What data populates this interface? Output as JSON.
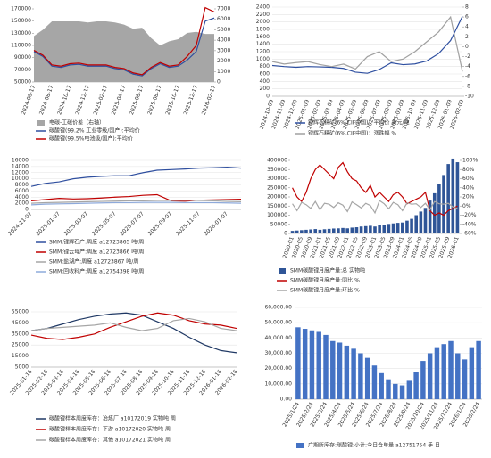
{
  "chart_data": [
    {
      "type": "line",
      "categories": [
        "2024-06-17",
        null,
        "2024-08-17",
        null,
        "2024-10-17",
        null,
        "2024-12-17",
        null,
        "2025-02-17",
        null,
        "2025-04-17",
        null,
        "2025-06-17",
        null,
        "2025-08-17",
        null,
        "2025-10-17",
        null,
        "2025-12-17",
        null,
        "2026-02-17"
      ],
      "series": [
        {
          "name": "电碳-工碳价差（右轴）",
          "type": "area",
          "axis": "y2",
          "color": "#a6a6a6",
          "values": [
            4400,
            5000,
            5800,
            5800,
            5800,
            5800,
            5700,
            5800,
            5800,
            5700,
            5500,
            5100,
            5200,
            4200,
            3500,
            3900,
            4100,
            4700,
            4800,
            4600,
            4600
          ]
        },
        {
          "name": "碳酸锂(99.2% 工业零级/国产):平均价",
          "type": "line",
          "color": "#2f4f9f",
          "values": [
            100000,
            92000,
            76000,
            74000,
            78000,
            79000,
            76000,
            76000,
            76000,
            72000,
            70000,
            63000,
            60000,
            72000,
            80000,
            74000,
            76000,
            86000,
            100000,
            150000,
            155000
          ]
        },
        {
          "name": "碳酸锂(99.5%电池级/国产):平均价",
          "type": "line",
          "color": "#c00000",
          "values": [
            102000,
            94000,
            78000,
            76000,
            80000,
            81000,
            78000,
            78000,
            78000,
            74000,
            72000,
            65000,
            62000,
            74000,
            82000,
            76000,
            78000,
            92000,
            110000,
            172000,
            165000
          ]
        }
      ],
      "ylim": [
        50000,
        170000
      ],
      "yticks": [
        50000,
        70000,
        90000,
        110000,
        130000,
        150000,
        170000
      ],
      "y2lim": [
        0,
        7000
      ],
      "y2ticks": [
        0,
        1000,
        2000,
        3000,
        4000,
        5000,
        6000,
        7000
      ],
      "grid": false
    },
    {
      "type": "line",
      "categories": [
        "2024-10-09",
        "2024-11-09",
        "2024-12-09",
        "2025-01-09",
        "2025-02-09",
        "2025-03-09",
        "2025-04-09",
        "2025-05-09",
        "2025-06-09",
        "2025-07-09",
        "2025-08-09",
        "2025-09-09",
        "2025-10-09",
        "2025-11-09",
        "2025-12-09",
        "2026-01-09",
        "2026-02-09"
      ],
      "series": [
        {
          "name": "锂辉石精矿(6%,CIF中国)：平均价 美元/吨",
          "type": "line",
          "color": "#2e4fa0",
          "values": [
            830,
            800,
            780,
            800,
            790,
            780,
            750,
            650,
            620,
            720,
            900,
            850,
            870,
            950,
            1150,
            1500,
            2150
          ]
        },
        {
          "name": "锂辉石精矿(6%,CIF中国)：涨跌幅 %",
          "type": "line",
          "axis": "y2",
          "color": "#a0a0a0",
          "values": [
            -3,
            -3.5,
            -3.2,
            -3,
            -3.6,
            -4,
            -3.5,
            -4.5,
            -2,
            -1,
            -3,
            -2.5,
            -1,
            1,
            3,
            6,
            -5
          ]
        }
      ],
      "ylim": [
        0,
        2400
      ],
      "yticks": [
        0,
        200,
        400,
        600,
        800,
        1000,
        1200,
        1400,
        1600,
        1800,
        2000,
        2200,
        2400
      ],
      "y2lim": [
        -10,
        8
      ],
      "y2ticks": [
        -10,
        -8,
        -6,
        -4,
        -2,
        0,
        2,
        4,
        6,
        8
      ],
      "grid": true
    },
    {
      "type": "line",
      "categories": [
        "2024-11-07",
        null,
        "2025-01-07",
        null,
        "2025-03-07",
        null,
        "2025-05-07",
        null,
        "2025-07-07",
        null,
        "2025-09-07",
        null,
        "2025-11-07",
        null,
        "2026-01-07",
        null
      ],
      "series": [
        {
          "name": "SMM:锂辉石产:周度 a12723865 吨/周",
          "type": "line",
          "color": "#2f4f9f",
          "values": [
            7500,
            8500,
            9000,
            10000,
            10500,
            10800,
            11000,
            11000,
            12000,
            12800,
            13000,
            13200,
            13500,
            13600,
            13800,
            13500
          ]
        },
        {
          "name": "SMM:锂云母产:周度 a12723866 吨/周",
          "type": "line",
          "color": "#c00000",
          "values": [
            2800,
            3200,
            3600,
            3400,
            3500,
            3700,
            4000,
            4200,
            4600,
            4800,
            2800,
            2700,
            3000,
            3100,
            3200,
            3300
          ]
        },
        {
          "name": "SMM:盐湖产:周度 a12723867 吨/周",
          "type": "line",
          "color": "#a6a6a6",
          "values": [
            2000,
            2200,
            2300,
            2400,
            2500,
            2600,
            2700,
            2800,
            2800,
            2900,
            2900,
            3000,
            2900,
            2800,
            2600,
            2500
          ]
        },
        {
          "name": "SMM:回收料产:周度 a12754398 吨/周",
          "type": "line",
          "color": "#8eaadb",
          "values": [
            1500,
            1700,
            1800,
            1900,
            2000,
            2100,
            2200,
            2200,
            2300,
            2300,
            2300,
            2200,
            2200,
            2200,
            2100,
            2000
          ]
        }
      ],
      "ylim": [
        0,
        16000
      ],
      "yticks": [
        0,
        2000,
        4000,
        6000,
        8000,
        10000,
        12000,
        14000,
        16000
      ],
      "grid": true
    },
    {
      "type": "bar",
      "categories": [
        "2020-01",
        null,
        "2020-05",
        null,
        "2020-09",
        null,
        "2021-01",
        null,
        "2021-05",
        null,
        "2021-09",
        null,
        "2022-01",
        null,
        "2022-05",
        null,
        "2022-09",
        null,
        "2023-01",
        null,
        "2023-05",
        null,
        "2023-09",
        null,
        "2024-01",
        null,
        "2024-05",
        null,
        "2024-09",
        null,
        "2025-01",
        null,
        "2025-05",
        null,
        "2025-09",
        null,
        "2026-01"
      ],
      "series": [
        {
          "name": "SMM碳酸锂月度产量:总 实物吨",
          "type": "bar",
          "color": "#2f5597",
          "values": [
            14000,
            16000,
            18000,
            20000,
            22000,
            24000,
            20000,
            23000,
            25000,
            27000,
            28000,
            30000,
            28000,
            32000,
            34000,
            38000,
            40000,
            42000,
            38000,
            45000,
            48000,
            52000,
            55000,
            58000,
            60000,
            70000,
            80000,
            100000,
            120000,
            140000,
            180000,
            220000,
            270000,
            320000,
            380000,
            410000,
            390000
          ]
        },
        {
          "name": "SMM碳酸锂月度产量:同比 %",
          "type": "line",
          "axis": "y2",
          "color": "#c00000",
          "values": [
            40,
            20,
            10,
            30,
            60,
            80,
            90,
            80,
            70,
            60,
            85,
            95,
            75,
            60,
            55,
            40,
            30,
            45,
            20,
            30,
            20,
            10,
            25,
            30,
            20,
            5,
            10,
            15,
            20,
            30,
            -10,
            -20,
            -15,
            -20,
            -10,
            -5,
            0
          ]
        },
        {
          "name": "SMM碳酸锂月度产量:环比 %",
          "type": "line",
          "axis": "y2",
          "color": "#a6a6a6",
          "values": [
            5,
            -10,
            8,
            3,
            -5,
            10,
            -8,
            6,
            4,
            -3,
            7,
            2,
            -12,
            9,
            3,
            -4,
            6,
            1,
            -15,
            12,
            5,
            -6,
            8,
            3,
            -10,
            7,
            4,
            5,
            -3,
            6,
            -8,
            10,
            5,
            4,
            6,
            -2,
            -5
          ]
        }
      ],
      "ylim": [
        0,
        400000
      ],
      "yticks": [
        0,
        50000,
        100000,
        150000,
        200000,
        250000,
        300000,
        350000,
        400000
      ],
      "y2lim": [
        -60,
        100
      ],
      "y2ticks": [
        {
          "value": -60,
          "label": "-60%"
        },
        {
          "value": -40,
          "label": "-40%"
        },
        {
          "value": -20,
          "label": "-20%"
        },
        {
          "value": 0,
          "label": "0%"
        },
        {
          "value": 20,
          "label": "20%"
        },
        {
          "value": 40,
          "label": "40%"
        },
        {
          "value": 60,
          "label": "60%"
        },
        {
          "value": 80,
          "label": "80%"
        },
        {
          "value": 100,
          "label": "100%"
        }
      ],
      "grid": false
    },
    {
      "type": "line",
      "categories": [
        "2025-01-16",
        "2025-02-16",
        "2025-03-16",
        "2025-04-16",
        "2025-05-16",
        "2025-06-16",
        "2025-07-16",
        "2025-08-16",
        "2025-09-16",
        "2025-10-16",
        "2025-11-16",
        "2025-12-16",
        "2026-01-16",
        "2026-02-16"
      ],
      "series": [
        {
          "name": "碳酸锂样本周度库存：冶炼厂 a10172019 实物吨 周",
          "type": "line",
          "color": "#1f3864",
          "values": [
            38000,
            40000,
            44000,
            48000,
            51000,
            53000,
            54000,
            52000,
            46000,
            40000,
            32000,
            25000,
            20000,
            18000
          ]
        },
        {
          "name": "碳酸锂样本周度库存：下游 a10172020 实物吨 周",
          "type": "line",
          "color": "#c00000",
          "values": [
            34000,
            31000,
            30000,
            32000,
            35000,
            41000,
            46000,
            51000,
            54000,
            52000,
            47000,
            44000,
            43000,
            40000
          ]
        },
        {
          "name": "碳酸锂样本周度库存：其他 a10172021 实物吨 周",
          "type": "line",
          "color": "#a6a6a6",
          "values": [
            38000,
            40000,
            41000,
            42000,
            43000,
            45000,
            41000,
            38000,
            40000,
            47000,
            49000,
            46000,
            40000,
            38000
          ]
        }
      ],
      "ylim": [
        5000,
        55000
      ],
      "yticks": [
        5000,
        15000,
        25000,
        35000,
        45000,
        55000
      ],
      "grid": true
    },
    {
      "type": "bar",
      "categories": [
        "2025/1/24",
        null,
        "2025/2/24",
        null,
        "2025/3/24",
        null,
        "2025/4/24",
        null,
        "2025/5/24",
        null,
        "2025/6/24",
        null,
        "2025/7/24",
        null,
        "2025/8/24",
        null,
        "2025/9/24",
        null,
        "2025/10/24",
        null,
        "2025/11/24",
        null,
        "2025/12/24",
        null,
        "2026/1/24",
        null,
        "2026/2/24"
      ],
      "series": [
        {
          "name": "广期所库存:碳酸锂:小计:今日仓单量 a12751754 手 日",
          "type": "bar",
          "color": "#4472c4",
          "values": [
            47000,
            46000,
            45000,
            44000,
            42000,
            38000,
            37000,
            35000,
            33000,
            30000,
            27000,
            22000,
            17000,
            13000,
            10000,
            9000,
            12000,
            18000,
            25000,
            30000,
            34000,
            36000,
            38000,
            30000,
            26000,
            34000,
            38000
          ]
        }
      ],
      "ylim": [
        0,
        60000
      ],
      "yticks": [
        {
          "value": 0,
          "label": "0.00"
        },
        {
          "value": 10000,
          "label": "10,000.00"
        },
        {
          "value": 20000,
          "label": "20,000.00"
        },
        {
          "value": 30000,
          "label": "30,000.00"
        },
        {
          "value": 40000,
          "label": "40,000.00"
        },
        {
          "value": 50000,
          "label": "50,000.00"
        },
        {
          "value": 60000,
          "label": "60,000.00"
        }
      ],
      "grid": true
    }
  ]
}
